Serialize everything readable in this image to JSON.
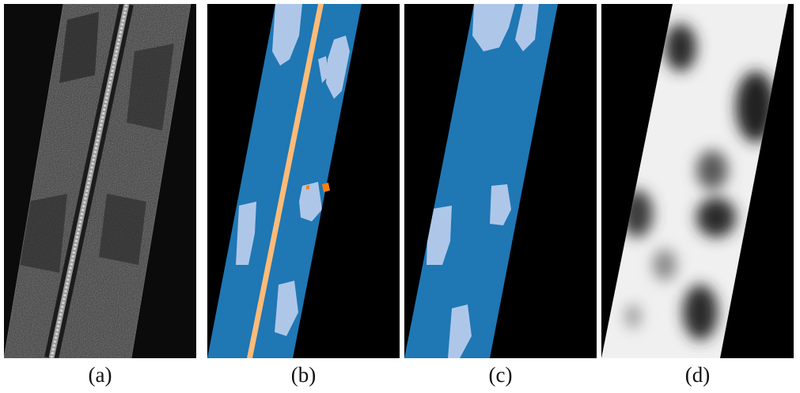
{
  "figure": {
    "panels": [
      {
        "id": "a",
        "caption": "(a)",
        "content": "grayscale-sonar-image"
      },
      {
        "id": "b",
        "caption": "(b)",
        "content": "segmentation-map-with-pipeline"
      },
      {
        "id": "c",
        "caption": "(c)",
        "content": "segmentation-map"
      },
      {
        "id": "d",
        "caption": "(d)",
        "content": "grayscale-probability-map"
      }
    ],
    "colors": {
      "background": "#000000",
      "strip_dark_blue": "#1f77b4",
      "light_blue": "#aec7e8",
      "light_orange": "#ffbb78",
      "orange": "#ff7f0e",
      "sonar_gray": "#3a3a3a",
      "map_white": "#f0f0f0",
      "map_dark": "#2a2a2a"
    }
  }
}
